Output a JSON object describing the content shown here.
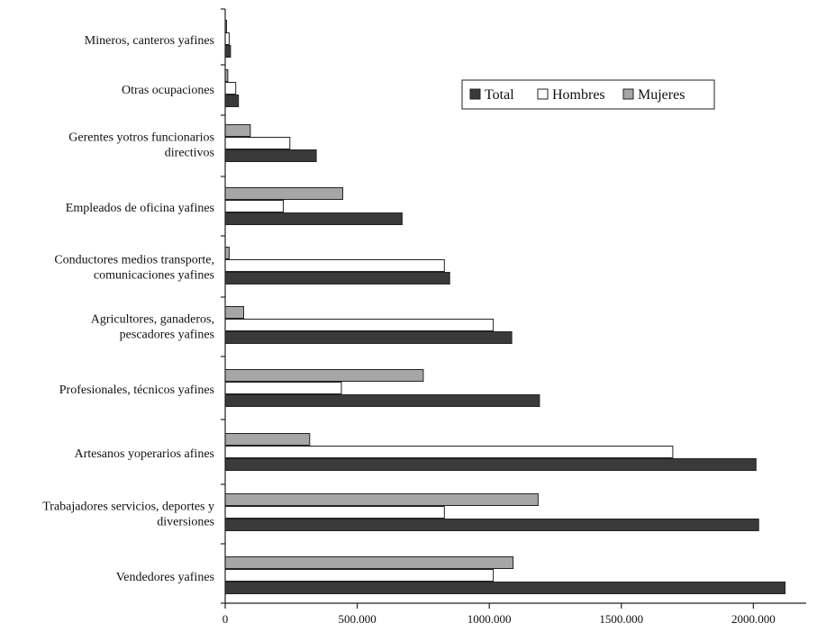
{
  "chart_data": {
    "type": "bar",
    "orientation": "horizontal",
    "categories": [
      "Mineros, canteros yafines",
      "Otras ocupaciones",
      "Gerentes yotros funcionarios directivos",
      "Empleados de oficina yafines",
      "Conductores medios transporte, comunicaciones yafines",
      "Agricultores, ganaderos, pescadores yafines",
      "Profesionales, técnicos yafines",
      "Artesanos yoperarios afines",
      "Trabajadores servicios, deportes y diversiones",
      "Vendedores yafines"
    ],
    "category_lines": [
      [
        "Mineros, canteros yafines"
      ],
      [
        "Otras ocupaciones"
      ],
      [
        "Gerentes yotros funcionarios",
        "directivos"
      ],
      [
        "Empleados de oficina yafines"
      ],
      [
        "Conductores medios transporte,",
        "comunicaciones yafines"
      ],
      [
        "Agricultores, ganaderos,",
        "pescadores yafines"
      ],
      [
        "Profesionales, técnicos yafines"
      ],
      [
        "Artesanos yoperarios afines"
      ],
      [
        "Trabajadores servicios, deportes y",
        "diversiones"
      ],
      [
        "Vendedores yafines"
      ]
    ],
    "series": [
      {
        "name": "Mujeres",
        "color": "#a6a6a6",
        "values": [
          5000,
          10000,
          95000,
          445000,
          15000,
          70000,
          750000,
          320000,
          1185000,
          1090000
        ]
      },
      {
        "name": "Hombres",
        "color": "#ffffff",
        "values": [
          15000,
          40000,
          245000,
          220000,
          830000,
          1015000,
          440000,
          1695000,
          830000,
          1015000
        ]
      },
      {
        "name": "Total",
        "color": "#3a3a3a",
        "values": [
          20000,
          50000,
          345000,
          670000,
          850000,
          1085000,
          1190000,
          2010000,
          2020000,
          2120000
        ]
      }
    ],
    "xlim": [
      0,
      2200000
    ],
    "xticks": [
      0,
      500000,
      1000000,
      1500000,
      2000000
    ],
    "xtick_labels": [
      "0",
      "500.000",
      "1000.000",
      "1500.000",
      "2000.000"
    ],
    "legend": {
      "position": "top-right",
      "order": [
        "Total",
        "Hombres",
        "Mujeres"
      ]
    },
    "grid": false
  }
}
